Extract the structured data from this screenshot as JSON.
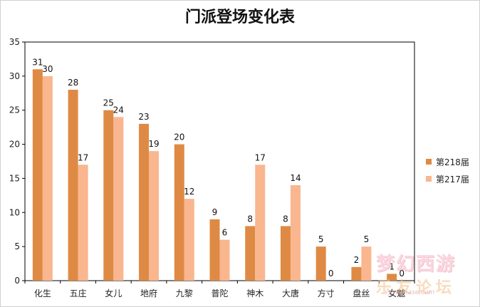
{
  "chart_data": {
    "type": "bar",
    "title": "门派登场变化表",
    "xlabel": "",
    "ylabel": "",
    "ylim": [
      0,
      35
    ],
    "yticks": [
      0,
      5,
      10,
      15,
      20,
      25,
      30,
      35
    ],
    "grid": false,
    "legend_position": "right",
    "categories": [
      "化生",
      "五庄",
      "女儿",
      "地府",
      "九黎",
      "普陀",
      "神木",
      "大唐",
      "方寸",
      "盘丝",
      "女魃"
    ],
    "series": [
      {
        "name": "第218届",
        "color": "#df8a44",
        "values": [
          31,
          28,
          25,
          23,
          20,
          9,
          8,
          8,
          5,
          2,
          1
        ]
      },
      {
        "name": "第217届",
        "color": "#f9b68f",
        "values": [
          30,
          17,
          24,
          19,
          12,
          6,
          17,
          14,
          0,
          5,
          0
        ]
      }
    ]
  },
  "watermark": {
    "main": "梦幻西游",
    "sub": "乐友论坛",
    "url": "sy.netease.com"
  }
}
